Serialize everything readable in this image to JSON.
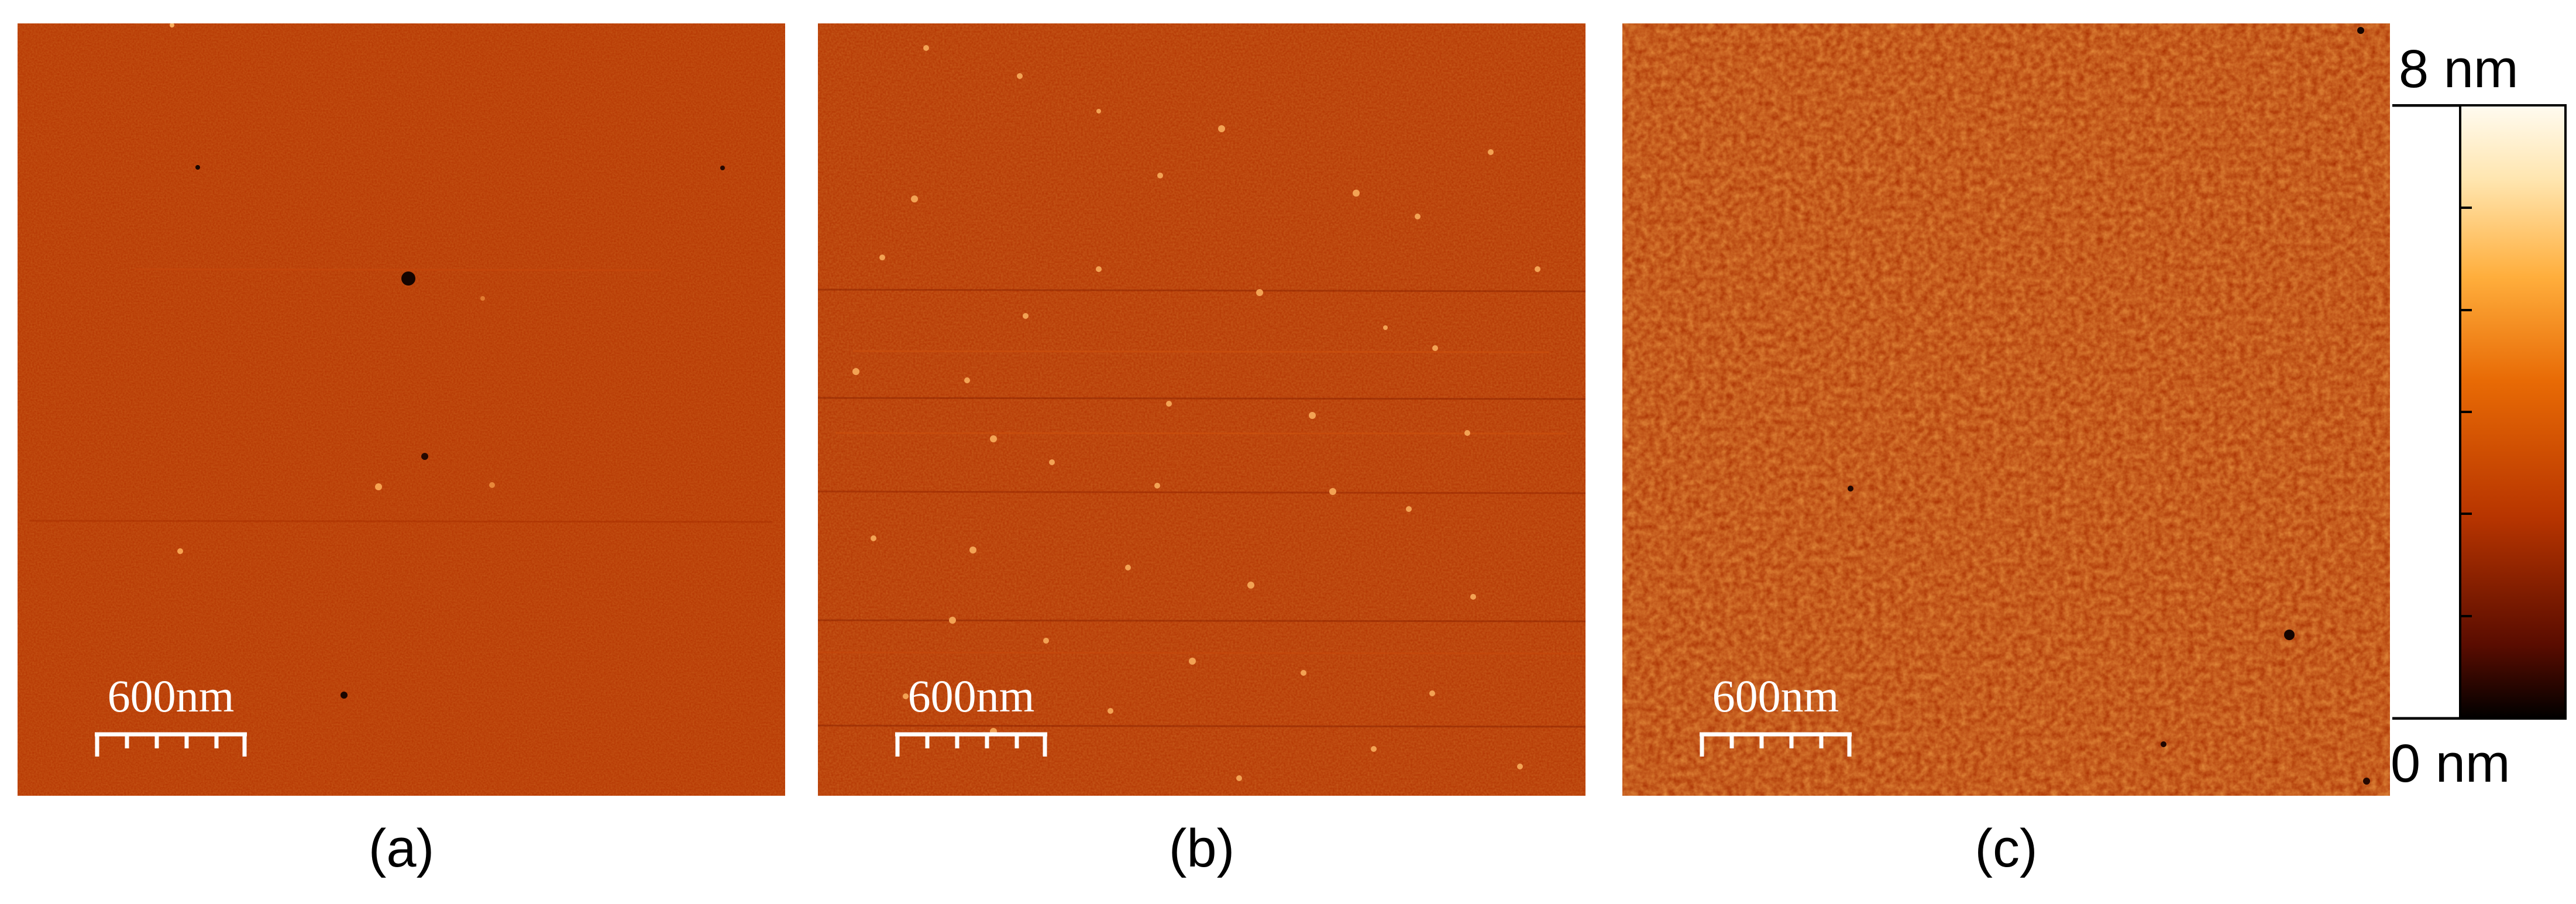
{
  "panels": [
    {
      "id": "a",
      "caption": "(a)",
      "scale_label": "600nm"
    },
    {
      "id": "b",
      "caption": "(b)",
      "scale_label": "600nm"
    },
    {
      "id": "c",
      "caption": "(c)",
      "scale_label": "600nm"
    }
  ],
  "colorbar": {
    "max_label": "8 nm",
    "min_label": "0 nm",
    "gradient": [
      "#000000",
      "#5a0c00",
      "#b83500",
      "#e86a05",
      "#ffae3c",
      "#ffe6b0",
      "#fffbf0"
    ]
  },
  "colors": {
    "background": "#b83500",
    "specks_light": "#f6a250",
    "specks_dark": "#1a0600"
  }
}
